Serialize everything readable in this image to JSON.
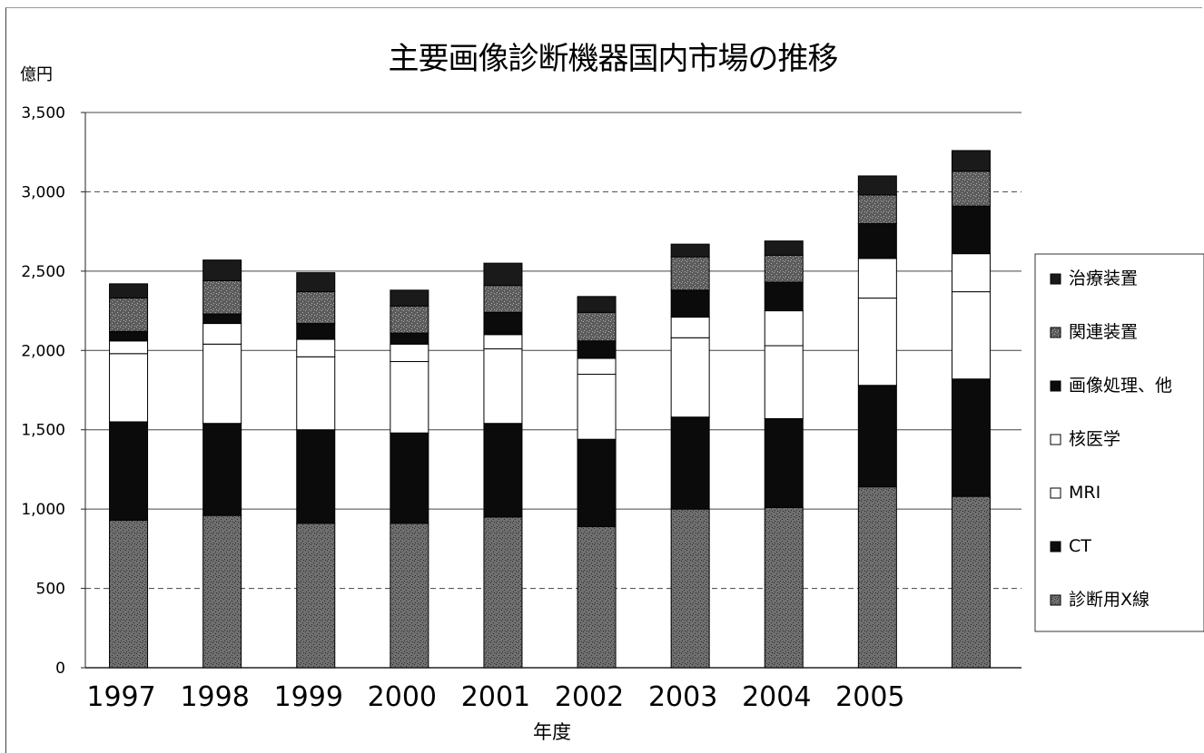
{
  "chart_data": {
    "type": "bar",
    "stacked": true,
    "title": "主要画像診断機器国内市場の推移",
    "ylabel": "億円",
    "xlabel": "年度",
    "ylim": [
      0,
      3500
    ],
    "yticks": [
      "0",
      "500",
      "1,000",
      "1,500",
      "2,000",
      "2,500",
      "3,000",
      "3,500"
    ],
    "yticks_values": [
      0,
      500,
      1000,
      1500,
      2000,
      2500,
      3000,
      3500
    ],
    "grid": true,
    "legend_position": "right",
    "categories": [
      "1997",
      "1998",
      "1999",
      "2000",
      "2001",
      "2002",
      "2003",
      "2004",
      "2005",
      ""
    ],
    "series": [
      {
        "name": "診断用X線",
        "color": "#6f6f6f",
        "values": [
          930,
          960,
          910,
          910,
          950,
          890,
          1000,
          1010,
          1140,
          1080
        ]
      },
      {
        "name": "CT",
        "color": "#0b0b0b",
        "values": [
          620,
          580,
          590,
          570,
          590,
          550,
          580,
          560,
          640,
          740
        ]
      },
      {
        "name": "MRI",
        "color": "#ffffff",
        "values": [
          430,
          500,
          460,
          450,
          470,
          410,
          500,
          460,
          550,
          550
        ]
      },
      {
        "name": "核医学",
        "color": "#ffffff",
        "values": [
          80,
          130,
          110,
          110,
          90,
          100,
          130,
          220,
          250,
          240
        ]
      },
      {
        "name": "画像処理、他",
        "color": "#0b0b0b",
        "values": [
          60,
          60,
          100,
          70,
          140,
          110,
          170,
          180,
          220,
          300
        ]
      },
      {
        "name": "関連装置",
        "color": "#5c5c5c",
        "values": [
          210,
          210,
          200,
          170,
          170,
          180,
          210,
          170,
          180,
          220
        ]
      },
      {
        "name": "治療装置",
        "color": "#1a1a1a",
        "values": [
          90,
          130,
          120,
          100,
          140,
          100,
          80,
          90,
          120,
          130
        ]
      }
    ],
    "totals": [
      2420,
      2570,
      2490,
      2380,
      2550,
      2340,
      2670,
      2690,
      3100,
      3260
    ]
  }
}
